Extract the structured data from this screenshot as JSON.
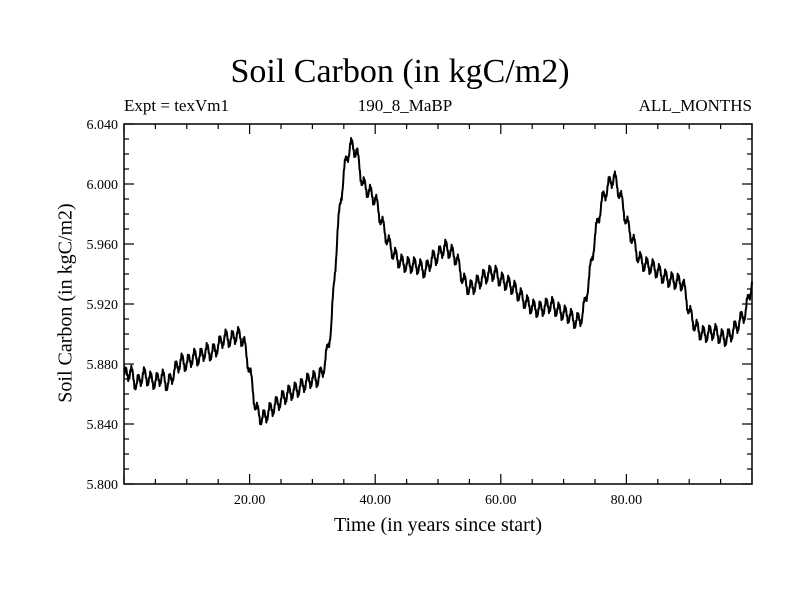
{
  "header": {
    "title": "Soil Carbon (in kgC/m2)",
    "experiment": "Expt = texVm1",
    "subtitle": "190_8_MaBP",
    "months": "ALL_MONTHS"
  },
  "chart_data": {
    "type": "line",
    "title": "Soil Carbon (in kgC/m2)",
    "xlabel": "Time (in years since start)",
    "ylabel": "Soil Carbon (in kgC/m2)",
    "xlim": [
      0,
      100
    ],
    "ylim": [
      5.8,
      6.04
    ],
    "xticks": [
      20,
      40,
      60,
      80
    ],
    "xtick_labels": [
      "20.00",
      "40.00",
      "60.00",
      "80.00"
    ],
    "yticks": [
      5.8,
      5.84,
      5.88,
      5.92,
      5.96,
      6.0,
      6.04
    ],
    "ytick_labels": [
      "5.800",
      "5.840",
      "5.880",
      "5.920",
      "5.960",
      "6.000",
      "6.040"
    ],
    "grid": false,
    "series": [
      {
        "name": "Soil Carbon",
        "color": "#000000",
        "x": [
          0,
          1,
          2,
          3,
          4,
          5,
          6,
          7,
          8,
          9,
          10,
          11,
          12,
          13,
          14,
          15,
          16,
          17,
          18,
          19,
          20,
          21,
          22,
          23,
          24,
          25,
          26,
          27,
          28,
          29,
          30,
          31,
          32,
          33,
          34,
          35,
          36,
          37,
          38,
          39,
          40,
          41,
          42,
          43,
          44,
          45,
          46,
          47,
          48,
          49,
          50,
          51,
          52,
          53,
          54,
          55,
          56,
          57,
          58,
          59,
          60,
          61,
          62,
          63,
          64,
          65,
          66,
          67,
          68,
          69,
          70,
          71,
          72,
          73,
          74,
          75,
          76,
          77,
          78,
          79,
          80,
          81,
          82,
          83,
          84,
          85,
          86,
          87,
          88,
          89,
          90,
          91,
          92,
          93,
          94,
          95,
          96,
          97,
          98,
          99,
          100
        ],
        "y": [
          5.872,
          5.875,
          5.866,
          5.873,
          5.87,
          5.868,
          5.872,
          5.866,
          5.875,
          5.882,
          5.88,
          5.885,
          5.884,
          5.889,
          5.887,
          5.892,
          5.898,
          5.896,
          5.9,
          5.896,
          5.876,
          5.85,
          5.843,
          5.848,
          5.852,
          5.856,
          5.86,
          5.862,
          5.864,
          5.868,
          5.87,
          5.87,
          5.88,
          5.905,
          5.968,
          6.008,
          6.026,
          6.022,
          6.0,
          5.995,
          5.99,
          5.975,
          5.962,
          5.953,
          5.948,
          5.946,
          5.946,
          5.945,
          5.942,
          5.95,
          5.952,
          5.958,
          5.955,
          5.95,
          5.936,
          5.93,
          5.933,
          5.937,
          5.94,
          5.941,
          5.936,
          5.934,
          5.931,
          5.926,
          5.921,
          5.918,
          5.916,
          5.918,
          5.92,
          5.916,
          5.914,
          5.912,
          5.908,
          5.912,
          5.935,
          5.965,
          5.987,
          5.998,
          6.005,
          5.993,
          5.975,
          5.963,
          5.95,
          5.946,
          5.945,
          5.942,
          5.938,
          5.936,
          5.935,
          5.934,
          5.915,
          5.905,
          5.9,
          5.9,
          5.902,
          5.898,
          5.897,
          5.902,
          5.908,
          5.915,
          5.935
        ]
      }
    ]
  }
}
